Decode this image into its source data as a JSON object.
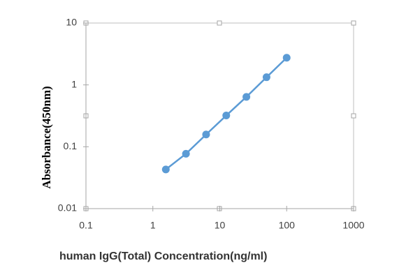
{
  "chart_data": {
    "type": "line",
    "xlabel": "human IgG(Total) Concentration(ng/ml)",
    "ylabel": "Absorbance(450nm)",
    "x": [
      1.5625,
      3.125,
      6.25,
      12.5,
      25,
      50,
      100
    ],
    "series": [
      {
        "color": "#5b9bd5",
        "values": [
          0.043,
          0.077,
          0.158,
          0.32,
          0.64,
          1.33,
          2.75
        ]
      }
    ],
    "xscale": "log",
    "yscale": "log",
    "xlim": [
      0.1,
      1000
    ],
    "xticks": [
      0.1,
      1,
      10,
      100,
      1000
    ],
    "ylim": [
      0.01,
      10
    ],
    "yticks": [
      0.01,
      0.1,
      1,
      10
    ]
  }
}
